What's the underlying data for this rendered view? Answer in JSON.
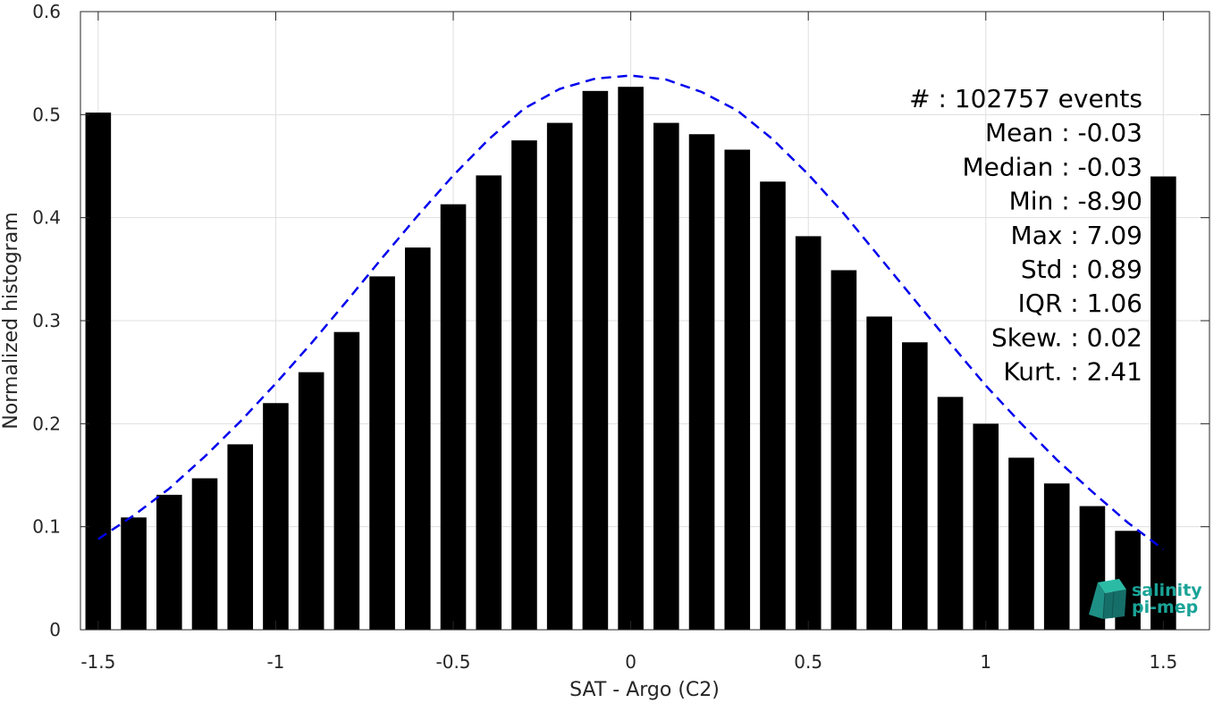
{
  "chart_data": {
    "type": "bar",
    "xlabel": "SAT - Argo (C2)",
    "ylabel": "Normalized histogram",
    "xlim": [
      -1.55,
      1.63
    ],
    "ylim": [
      0,
      0.6
    ],
    "xticks": [
      -1.5,
      -1,
      -0.5,
      0,
      0.5,
      1,
      1.5
    ],
    "xtick_labels": [
      "-1.5",
      "-1",
      "-0.5",
      "0",
      "0.5",
      "1",
      "1.5"
    ],
    "yticks": [
      0,
      0.1,
      0.2,
      0.3,
      0.4,
      0.5,
      0.6
    ],
    "ytick_labels": [
      "0",
      "0.1",
      "0.2",
      "0.3",
      "0.4",
      "0.5",
      "0.6"
    ],
    "grid": true,
    "bar_color": "#000000",
    "curve_color": "#0000ee",
    "x": [
      -1.5,
      -1.4,
      -1.3,
      -1.2,
      -1.1,
      -1.0,
      -0.9,
      -0.8,
      -0.7,
      -0.6,
      -0.5,
      -0.4,
      -0.3,
      -0.2,
      -0.1,
      0.0,
      0.1,
      0.2,
      0.3,
      0.4,
      0.5,
      0.6,
      0.7,
      0.8,
      0.9,
      1.0,
      1.1,
      1.2,
      1.3,
      1.4,
      1.5
    ],
    "values": [
      0.502,
      0.109,
      0.131,
      0.147,
      0.18,
      0.22,
      0.25,
      0.289,
      0.343,
      0.371,
      0.413,
      0.441,
      0.475,
      0.492,
      0.523,
      0.527,
      0.492,
      0.481,
      0.466,
      0.435,
      0.382,
      0.349,
      0.304,
      0.279,
      0.226,
      0.2,
      0.167,
      0.142,
      0.12,
      0.096,
      0.44
    ],
    "fit_curve": {
      "style": "dashed",
      "x": [
        -1.5,
        -1.4,
        -1.3,
        -1.2,
        -1.1,
        -1.0,
        -0.9,
        -0.8,
        -0.7,
        -0.6,
        -0.5,
        -0.4,
        -0.3,
        -0.2,
        -0.1,
        0.0,
        0.1,
        0.2,
        0.3,
        0.4,
        0.5,
        0.6,
        0.7,
        0.8,
        0.9,
        1.0,
        1.1,
        1.2,
        1.3,
        1.4,
        1.5
      ],
      "y": [
        0.088,
        0.111,
        0.137,
        0.168,
        0.202,
        0.239,
        0.278,
        0.319,
        0.361,
        0.402,
        0.441,
        0.476,
        0.506,
        0.525,
        0.535,
        0.538,
        0.534,
        0.522,
        0.504,
        0.476,
        0.442,
        0.404,
        0.362,
        0.32,
        0.278,
        0.237,
        0.2,
        0.165,
        0.134,
        0.104,
        0.078
      ]
    },
    "annotations": [
      "#  : 102757 events",
      "Mean : -0.03",
      "Median : -0.03",
      "Min : -8.90",
      "Max : 7.09",
      "Std : 0.89",
      "IQR : 1.06",
      "Skew. : 0.02",
      "Kurt. : 2.41"
    ]
  },
  "logo": {
    "line1": "salinity",
    "line2": "pi-mep"
  }
}
